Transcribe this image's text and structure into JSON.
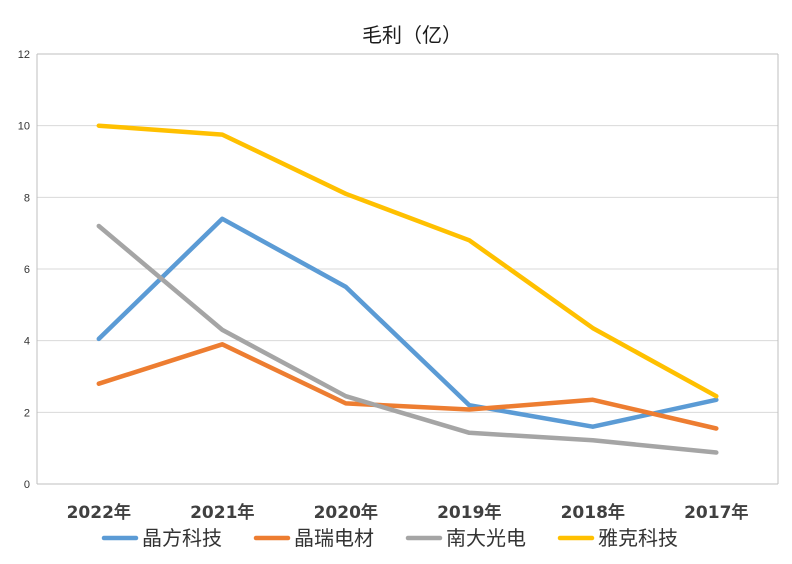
{
  "chart_data": {
    "type": "line",
    "title": "毛利（亿）",
    "categories": [
      "2022年",
      "2021年",
      "2020年",
      "2019年",
      "2018年",
      "2017年"
    ],
    "ylim": [
      0,
      12
    ],
    "yticks": [
      "0",
      "2",
      "4",
      "6",
      "8",
      "10",
      "12"
    ],
    "grid": true,
    "legend_position": "bottom",
    "series": [
      {
        "name": "晶方科技",
        "color": "#5b9bd5",
        "values": [
          4.05,
          7.4,
          5.5,
          2.2,
          1.6,
          2.35
        ]
      },
      {
        "name": "晶瑞电材",
        "color": "#ed7d31",
        "values": [
          2.8,
          3.9,
          2.25,
          2.08,
          2.35,
          1.55
        ]
      },
      {
        "name": "南大光电",
        "color": "#a5a5a5",
        "values": [
          7.2,
          4.3,
          2.45,
          1.43,
          1.22,
          0.88
        ]
      },
      {
        "name": "雅克科技",
        "color": "#ffc000",
        "values": [
          10.0,
          9.75,
          8.1,
          6.8,
          4.35,
          2.45
        ]
      }
    ]
  }
}
